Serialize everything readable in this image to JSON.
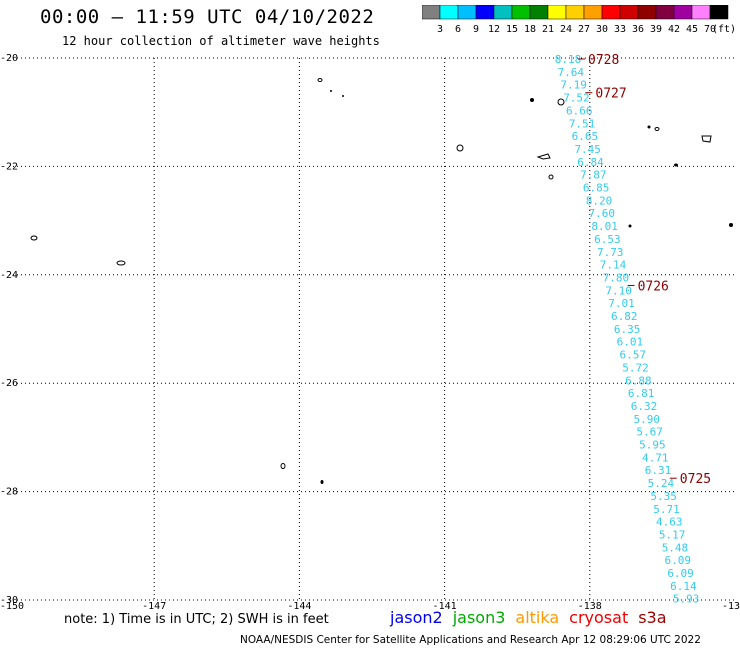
{
  "title": "00:00 – 11:59 UTC 04/10/2022",
  "subtitle": "12 hour collection of altimeter wave heights",
  "colorbar": {
    "unit": "(ft)",
    "ticks": [
      "3",
      "6",
      "9",
      "12",
      "15",
      "18",
      "21",
      "24",
      "27",
      "30",
      "33",
      "36",
      "39",
      "42",
      "45",
      "70"
    ],
    "colors": [
      "#808080",
      "#00ffff",
      "#00bfff",
      "#0000ff",
      "#00c0c0",
      "#00c000",
      "#008000",
      "#ffff00",
      "#ffd000",
      "#ffa000",
      "#ff0000",
      "#d00000",
      "#900000",
      "#800040",
      "#a000a0",
      "#ff80ff",
      "#000000"
    ]
  },
  "map": {
    "lon_range": [
      -150,
      -135
    ],
    "lat_range": [
      -30,
      -20
    ],
    "x_tick_labels": [
      "-150",
      "-147",
      "-144",
      "-141",
      "-138",
      "-13"
    ],
    "y_tick_labels": [
      "-20",
      "-22",
      "-24",
      "-26",
      "-28",
      "-30"
    ]
  },
  "track": {
    "color": "#33ccee",
    "wave_heights": [
      "8.18",
      "7.64",
      "7.19",
      "7.52",
      "6.66",
      "7.51",
      "6.65",
      "7.45",
      "6.84",
      "7.87",
      "6.85",
      "8.20",
      "7.60",
      "8.01",
      "6.53",
      "7.73",
      "7.14",
      "7.80",
      "7.10",
      "7.01",
      "6.82",
      "6.35",
      "6.01",
      "6.57",
      "5.72",
      "6.88",
      "6.81",
      "6.32",
      "5.90",
      "5.67",
      "5.95",
      "4.71",
      "6.31",
      "5.24",
      "5.35",
      "5.71",
      "4.63",
      "5.17",
      "5.48",
      "6.09",
      "6.09",
      "6.14",
      "5.93"
    ],
    "time_labels": [
      "0728",
      "0727",
      "0726",
      "0725"
    ],
    "time_color": "#8b0000"
  },
  "note": "note: 1) Time is in UTC; 2) SWH is in feet",
  "satellites": [
    {
      "name": "jason2",
      "color": "#0000ee"
    },
    {
      "name": "jason3",
      "color": "#00aa00"
    },
    {
      "name": "altika",
      "color": "#ff9900"
    },
    {
      "name": "cryosat",
      "color": "#ee0000"
    },
    {
      "name": "s3a",
      "color": "#990000"
    }
  ],
  "credit": "NOAA/NESDIS Center for Satellite Applications and Research   Apr 12 08:29:06 UTC 2022"
}
